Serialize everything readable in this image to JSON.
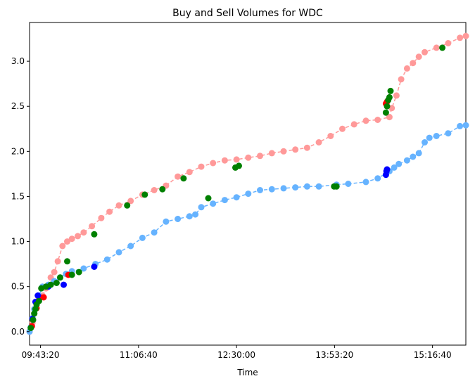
{
  "chart_data": {
    "type": "scatter",
    "title": "Buy and Sell Volumes for WDC",
    "xlabel": "Time",
    "ylabel": "",
    "xlim": [
      "09:34:00",
      "15:45:00"
    ],
    "ylim": [
      -0.15,
      3.43
    ],
    "grid": false,
    "legend": "none",
    "x_ticks": [
      "09:43:20",
      "11:06:40",
      "12:30:00",
      "13:53:20",
      "15:16:40"
    ],
    "y_ticks": [
      "0.0",
      "0.5",
      "1.0",
      "1.5",
      "2.0",
      "2.5",
      "3.0"
    ],
    "colors": {
      "sell_line": "#ff9999",
      "buy_line": "#66b3ff",
      "red_marker": "#ff0000",
      "blue_marker": "#0000ff",
      "green_marker": "#008000"
    },
    "series": [
      {
        "color": "#ff9999",
        "style": "dashed line with circle markers",
        "x": [
          "09:34:00",
          "09:35:00",
          "09:36:30",
          "09:38:00",
          "09:40:00",
          "09:42:00",
          "09:45:00",
          "09:48:00",
          "09:52:00",
          "09:55:00",
          "09:58:00",
          "10:02:00",
          "10:06:00",
          "10:10:00",
          "10:15:00",
          "10:20:00",
          "10:27:00",
          "10:35:00",
          "10:42:00",
          "10:50:00",
          "11:00:00",
          "11:10:00",
          "11:20:00",
          "11:30:00",
          "11:40:00",
          "11:50:00",
          "12:00:00",
          "12:10:00",
          "12:20:00",
          "12:30:00",
          "12:40:00",
          "12:50:00",
          "13:00:00",
          "13:10:00",
          "13:20:00",
          "13:30:00",
          "13:40:00",
          "13:50:00",
          "14:00:00",
          "14:10:00",
          "14:20:00",
          "14:30:00",
          "14:40:00",
          "14:42:00",
          "14:46:00",
          "14:50:00",
          "14:55:00",
          "15:00:00",
          "15:05:00",
          "15:10:00",
          "15:20:00",
          "15:30:00",
          "15:40:00",
          "15:45:00"
        ],
        "y": [
          0.0,
          0.04,
          0.1,
          0.2,
          0.3,
          0.36,
          0.4,
          0.48,
          0.6,
          0.66,
          0.78,
          0.95,
          1.0,
          1.03,
          1.06,
          1.1,
          1.17,
          1.26,
          1.33,
          1.4,
          1.45,
          1.52,
          1.57,
          1.62,
          1.72,
          1.77,
          1.83,
          1.87,
          1.9,
          1.91,
          1.93,
          1.95,
          1.98,
          2.0,
          2.02,
          2.04,
          2.1,
          2.17,
          2.25,
          2.3,
          2.34,
          2.35,
          2.38,
          2.48,
          2.62,
          2.8,
          2.92,
          2.98,
          3.05,
          3.1,
          3.15,
          3.2,
          3.26,
          3.28
        ]
      },
      {
        "color": "#66b3ff",
        "style": "dashed line with circle markers",
        "x": [
          "09:34:00",
          "09:35:00",
          "09:36:30",
          "09:38:00",
          "09:40:00",
          "09:42:00",
          "09:45:00",
          "09:50:00",
          "09:55:00",
          "10:00:00",
          "10:05:00",
          "10:10:00",
          "10:20:00",
          "10:30:00",
          "10:40:00",
          "10:50:00",
          "11:00:00",
          "11:10:00",
          "11:20:00",
          "11:30:00",
          "11:40:00",
          "11:50:00",
          "11:55:00",
          "12:00:00",
          "12:10:00",
          "12:20:00",
          "12:30:00",
          "12:40:00",
          "12:50:00",
          "13:00:00",
          "13:10:00",
          "13:20:00",
          "13:30:00",
          "13:40:00",
          "13:55:00",
          "14:05:00",
          "14:20:00",
          "14:30:00",
          "14:40:00",
          "14:44:00",
          "14:48:00",
          "14:55:00",
          "15:00:00",
          "15:05:00",
          "15:10:00",
          "15:14:00",
          "15:20:00",
          "15:30:00",
          "15:40:00",
          "15:45:00"
        ],
        "y": [
          0.0,
          0.05,
          0.15,
          0.25,
          0.32,
          0.4,
          0.5,
          0.52,
          0.56,
          0.6,
          0.64,
          0.67,
          0.7,
          0.75,
          0.8,
          0.88,
          0.95,
          1.04,
          1.1,
          1.22,
          1.25,
          1.28,
          1.3,
          1.38,
          1.42,
          1.46,
          1.49,
          1.53,
          1.57,
          1.58,
          1.59,
          1.6,
          1.61,
          1.61,
          1.63,
          1.64,
          1.66,
          1.7,
          1.78,
          1.82,
          1.86,
          1.9,
          1.94,
          1.98,
          2.1,
          2.15,
          2.17,
          2.2,
          2.28,
          2.29
        ]
      },
      {
        "color": "#ff0000",
        "style": "markers",
        "x": [
          "09:36:00",
          "09:40:00",
          "09:43:00",
          "09:46:00",
          "10:07:00",
          "14:37:00",
          "14:38:00"
        ],
        "y": [
          0.06,
          0.26,
          0.38,
          0.38,
          0.63,
          2.53,
          2.55
        ]
      },
      {
        "color": "#0000ff",
        "style": "markers",
        "x": [
          "09:36:30",
          "09:39:00",
          "09:41:00",
          "09:50:00",
          "10:03:00",
          "10:29:00",
          "14:37:00",
          "14:37:30",
          "14:38:00"
        ],
        "y": [
          0.14,
          0.33,
          0.4,
          0.5,
          0.52,
          0.72,
          1.74,
          1.78,
          1.8
        ]
      },
      {
        "color": "#008000",
        "style": "markers",
        "x": [
          "09:35:00",
          "09:37:00",
          "09:38:00",
          "09:39:00",
          "09:40:00",
          "09:42:00",
          "09:44:00",
          "09:48:00",
          "09:52:00",
          "09:57:00",
          "10:00:00",
          "10:06:00",
          "10:10:00",
          "10:16:00",
          "10:29:00",
          "10:57:00",
          "11:12:00",
          "11:27:00",
          "11:45:00",
          "12:06:00",
          "12:29:00",
          "12:32:00",
          "13:53:00",
          "13:55:00",
          "14:37:00",
          "14:38:00",
          "14:39:00",
          "14:40:00",
          "14:41:00",
          "15:25:00"
        ],
        "y": [
          0.04,
          0.13,
          0.2,
          0.25,
          0.3,
          0.34,
          0.48,
          0.5,
          0.52,
          0.54,
          0.6,
          0.78,
          0.63,
          0.66,
          1.08,
          1.4,
          1.52,
          1.58,
          1.7,
          1.48,
          1.82,
          1.84,
          1.61,
          1.61,
          2.43,
          2.5,
          2.57,
          2.6,
          2.67,
          3.15
        ]
      }
    ]
  }
}
